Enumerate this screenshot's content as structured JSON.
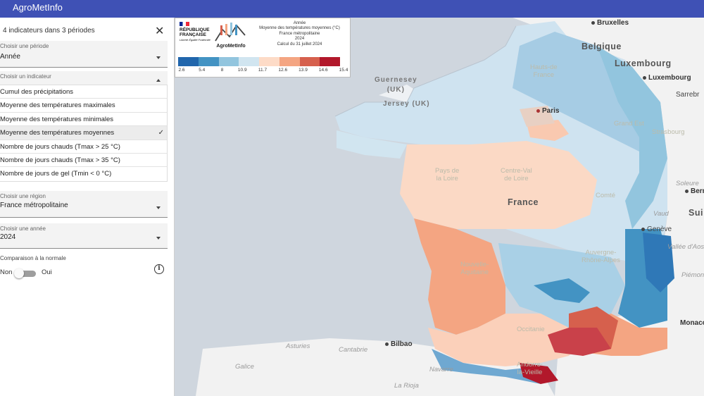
{
  "app": {
    "title": "AgroMetInfo"
  },
  "panel": {
    "header": "4 indicateurs dans 3 périodes",
    "period": {
      "label": "Choisir une période",
      "value": "Année"
    },
    "indicator": {
      "label": "Choisir un indicateur",
      "options": [
        "Cumul des précipitations",
        "Moyenne des températures maximales",
        "Moyenne des températures minimales",
        "Moyenne des températures moyennes",
        "Nombre de jours chauds (Tmax > 25 °C)",
        "Nombre de jours chauds (Tmax > 35 °C)",
        "Nombre de jours de gel (Tmin < 0 °C)"
      ],
      "selected_check": "✓"
    },
    "region": {
      "label": "Choisir une région",
      "value": "France métropolitaine"
    },
    "year": {
      "label": "Choisir une année",
      "value": "2024"
    },
    "normal": {
      "label": "Comparaison à la normale",
      "off": "Non",
      "on": "Oui",
      "enabled": false
    }
  },
  "legend": {
    "logo_rf_line1": "RÉPUBLIQUE",
    "logo_rf_line2": "FRANÇAISE",
    "logo_rf_motto": "Liberté Égalité Fraternité",
    "logo_am": "AgroMetInfo",
    "line1": "Année",
    "line2": "Moyenne des températures moyennes (°C)",
    "line3": "France métropolitaine",
    "line4": "2024",
    "line5": "Calcul du 31 juillet 2024",
    "colors": [
      "#2166ac",
      "#4393c3",
      "#92c5de",
      "#d1e5f0",
      "#fddbc7",
      "#f4a582",
      "#d6604d",
      "#b2182b"
    ],
    "ticks": [
      "2.6",
      "5.4",
      "8",
      "10.9",
      "11.7",
      "12.6",
      "13.9",
      "14.6",
      "15.4"
    ]
  },
  "map": {
    "countries": {
      "belgique": "Belgique",
      "luxembourg": "Luxembourg",
      "france": "France",
      "suisse": "Sui"
    },
    "cities": {
      "bruxelles": "Bruxelles",
      "luxembourg": "Luxembourg",
      "saarbr": "Sarrebr",
      "paris": "Paris",
      "bilbao": "Bilbao",
      "monaco": "Monaco",
      "berne": "Bern",
      "geneve": "Genève"
    },
    "regions": {
      "hauts": "Hauts-de\nFrance",
      "grandest": "Grand Est",
      "strasbourg": "Strasbourg",
      "pdl": "Pays de\nla Loire",
      "cvl": "Centre-Val\nde Loire",
      "bfc": "Comté",
      "na": "Nouvelle-\nAquitaine",
      "ara": "Auvergne-\nRhône-Alpes",
      "occ": "Occitanie",
      "vaud": "Vaud",
      "aoste": "Vallée d'Aoste",
      "piemonte": "Piémont",
      "soleure": "Soleure",
      "andorre": "Andorre-\nla-Vieille"
    },
    "seas": {
      "guernesey": "Guernesey\n(UK)",
      "jersey": "Jersey (UK)"
    },
    "spain": {
      "asturies": "Asturies",
      "cantabrie": "Cantabrie",
      "galice": "Galice",
      "navarre": "Navarre",
      "rioja": "La Rioja"
    }
  }
}
